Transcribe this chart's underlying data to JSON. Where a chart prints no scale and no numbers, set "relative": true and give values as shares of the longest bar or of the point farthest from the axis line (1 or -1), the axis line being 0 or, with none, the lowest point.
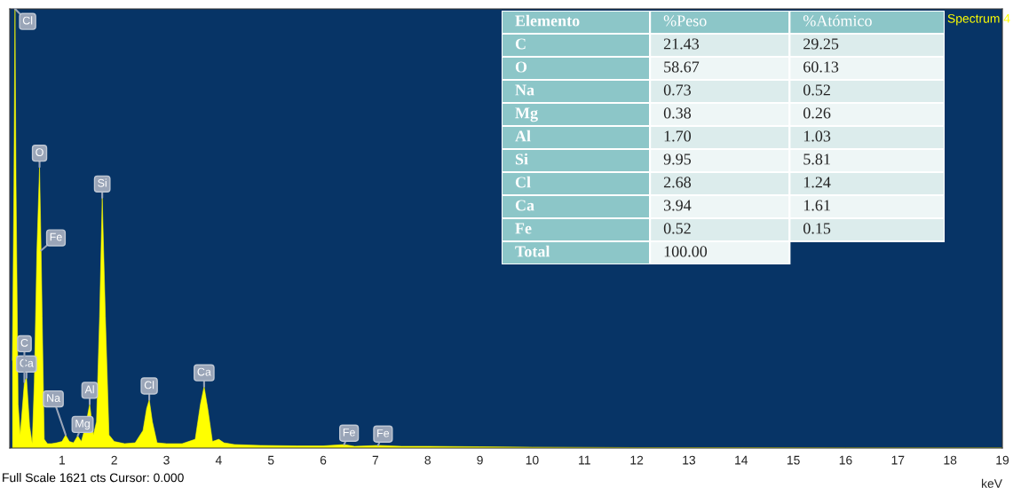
{
  "chart_data": [
    {
      "type": "area",
      "relative": true,
      "color": "#ffff00",
      "xlabel": "keV",
      "xlim": [
        0,
        19
      ],
      "xticks": [
        1,
        2,
        3,
        4,
        5,
        6,
        7,
        8,
        9,
        10,
        11,
        12,
        13,
        14,
        15,
        16,
        17,
        18,
        19
      ],
      "grid": false,
      "legend": false,
      "x": [
        0.05,
        0.08,
        0.1,
        0.12,
        0.16,
        0.2,
        0.28,
        0.32,
        0.38,
        0.43,
        0.47,
        0.52,
        0.57,
        0.6,
        0.62,
        0.66,
        0.72,
        0.8,
        0.9,
        1.0,
        1.07,
        1.14,
        1.22,
        1.3,
        1.37,
        1.45,
        1.53,
        1.6,
        1.66,
        1.72,
        1.77,
        1.83,
        1.9,
        2.0,
        2.2,
        2.4,
        2.55,
        2.62,
        2.67,
        2.73,
        2.82,
        3.0,
        3.3,
        3.55,
        3.65,
        3.72,
        3.79,
        3.88,
        4.0,
        4.1,
        4.3,
        4.8,
        5.5,
        6.0,
        6.4,
        6.6,
        7.05,
        7.5,
        8.0,
        9.0,
        10.0,
        12.0,
        14.0,
        16.0,
        19.0
      ],
      "values": [
        0.2,
        0.6,
        1.0,
        0.6,
        0.1,
        0.03,
        0.15,
        0.16,
        0.05,
        0.01,
        0.15,
        0.45,
        0.64,
        0.45,
        0.3,
        0.02,
        0.01,
        0.01,
        0.012,
        0.015,
        0.03,
        0.015,
        0.012,
        0.028,
        0.015,
        0.05,
        0.1,
        0.03,
        0.06,
        0.3,
        0.57,
        0.3,
        0.03,
        0.015,
        0.01,
        0.012,
        0.04,
        0.09,
        0.11,
        0.06,
        0.012,
        0.01,
        0.01,
        0.02,
        0.1,
        0.14,
        0.09,
        0.015,
        0.02,
        0.012,
        0.008,
        0.006,
        0.005,
        0.005,
        0.008,
        0.004,
        0.006,
        0.004,
        0.004,
        0.003,
        0.002,
        0.001,
        0.001,
        0.0005,
        0.0005
      ],
      "annotations": [
        {
          "text": "Cl",
          "x": 0.1,
          "y": 1.0
        },
        {
          "text": "O",
          "x": 0.57,
          "y": 0.64
        },
        {
          "text": "Fe",
          "x": 0.6,
          "y": 0.45
        },
        {
          "text": "Si",
          "x": 1.77,
          "y": 0.57
        },
        {
          "text": "Ca",
          "x": 0.32,
          "y": 0.16
        },
        {
          "text": "C",
          "x": 0.28,
          "y": 0.15
        },
        {
          "text": "Mg",
          "x": 1.3,
          "y": 0.028
        },
        {
          "text": "Na",
          "x": 1.07,
          "y": 0.03
        },
        {
          "text": "Al",
          "x": 1.53,
          "y": 0.1
        },
        {
          "text": "Cl",
          "x": 2.67,
          "y": 0.11
        },
        {
          "text": "Ca",
          "x": 3.72,
          "y": 0.14
        },
        {
          "text": "Fe",
          "x": 6.4,
          "y": 0.008
        },
        {
          "text": "Fe",
          "x": 7.05,
          "y": 0.006
        },
        "Full Scale 1621 cts Cursor: 0.000",
        "Spectrum 4"
      ]
    },
    {
      "type": "other",
      "annotations": [
        "Elemento",
        "%Peso",
        "%Atómico",
        "C",
        "21.43",
        "29.25",
        "O",
        "58.67",
        "60.13",
        "Na",
        "0.73",
        "0.52",
        "Mg",
        "0.38",
        "0.26",
        "Al",
        "1.70",
        "1.03",
        "Si",
        "9.95",
        "5.81",
        "Cl",
        "2.68",
        "1.24",
        "Ca",
        "3.94",
        "1.61",
        "Fe",
        "0.52",
        "0.15",
        "Total",
        "100.00"
      ]
    }
  ]
}
